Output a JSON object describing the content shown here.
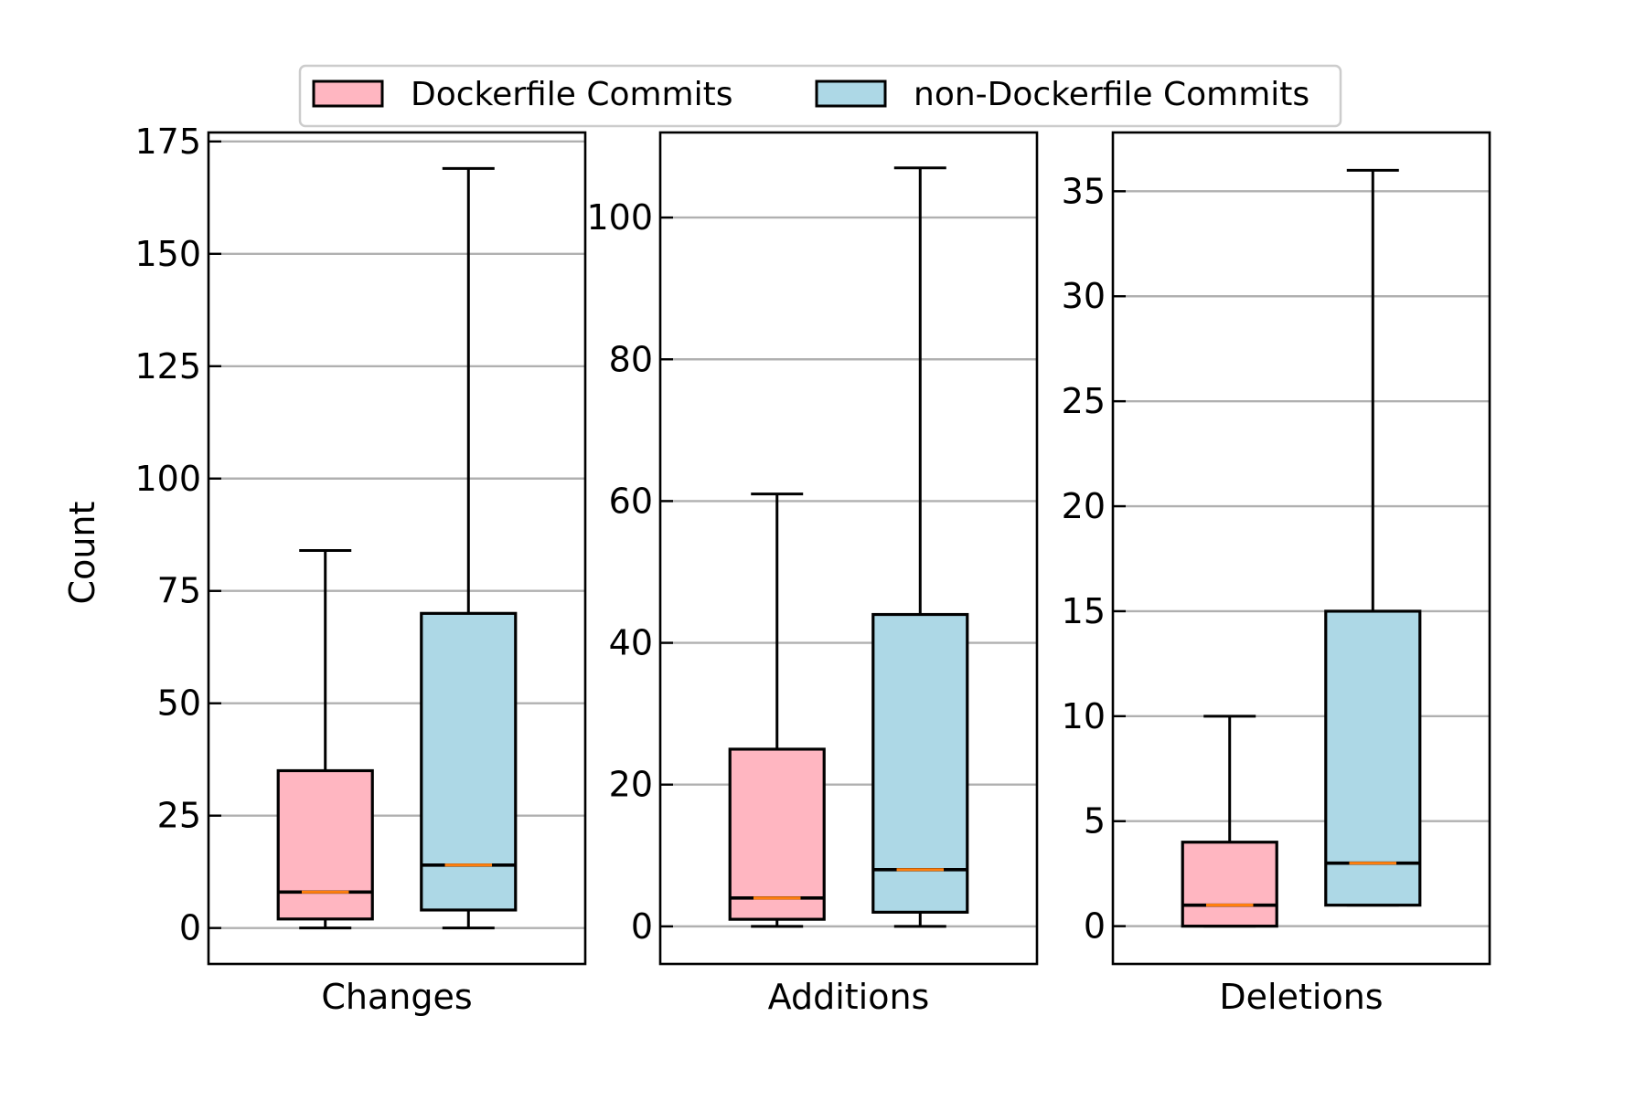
{
  "legend": {
    "placement": "top-center",
    "items": [
      {
        "label": "Dockerfile Commits",
        "color": "#ffb6c1"
      },
      {
        "label": "non-Dockerfile Commits",
        "color": "#add8e6"
      }
    ]
  },
  "ylabel": "Count",
  "colors": {
    "median": "#ff7f0e",
    "grid": "#b0b0b0",
    "frame": "#000000"
  },
  "chart_data": [
    {
      "type": "box",
      "xlabel": "Changes",
      "ylim": [
        -8,
        177
      ],
      "yticks": [
        0,
        25,
        50,
        75,
        100,
        125,
        150,
        175
      ],
      "grid": true,
      "boxes": [
        {
          "series": "Dockerfile Commits",
          "min": 0,
          "q1": 2,
          "median": 8,
          "q3": 35,
          "max": 84
        },
        {
          "series": "non-Dockerfile Commits",
          "min": 0,
          "q1": 4,
          "median": 14,
          "q3": 70,
          "max": 169
        }
      ]
    },
    {
      "type": "box",
      "xlabel": "Additions",
      "ylim": [
        -5.3,
        112
      ],
      "yticks": [
        0,
        20,
        40,
        60,
        80,
        100
      ],
      "grid": true,
      "boxes": [
        {
          "series": "Dockerfile Commits",
          "min": 0,
          "q1": 1,
          "median": 4,
          "q3": 25,
          "max": 61
        },
        {
          "series": "non-Dockerfile Commits",
          "min": 0,
          "q1": 2,
          "median": 8,
          "q3": 44,
          "max": 107
        }
      ]
    },
    {
      "type": "box",
      "xlabel": "Deletions",
      "ylim": [
        -1.8,
        37.8
      ],
      "yticks": [
        0,
        5,
        10,
        15,
        20,
        25,
        30,
        35
      ],
      "grid": true,
      "boxes": [
        {
          "series": "Dockerfile Commits",
          "min": 0,
          "q1": 0,
          "median": 1,
          "q3": 4,
          "max": 10
        },
        {
          "series": "non-Dockerfile Commits",
          "min": 1,
          "q1": 1,
          "median": 3,
          "q3": 15,
          "max": 36
        }
      ]
    }
  ]
}
